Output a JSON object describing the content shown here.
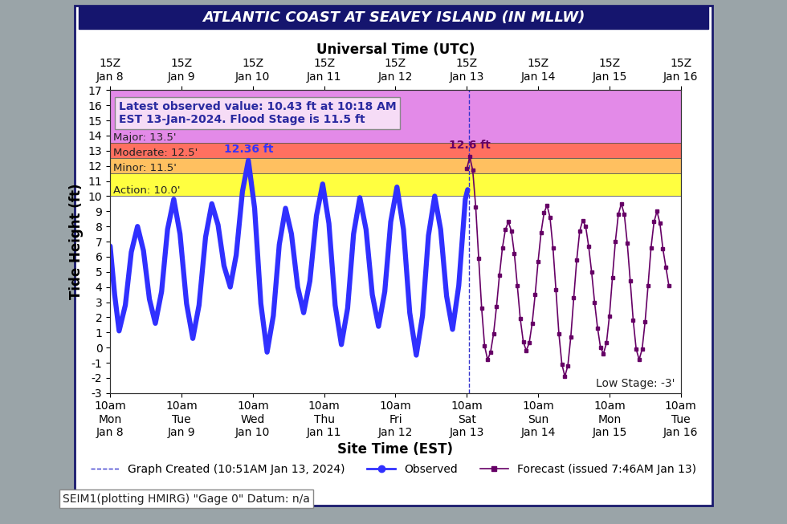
{
  "chart_data": {
    "type": "line",
    "title": "ATLANTIC COAST AT SEAVEY ISLAND (IN MLLW)",
    "x_label": "Site Time (EST)",
    "x2_label": "Universal Time (UTC)",
    "y_label": "Tide Height (ft)",
    "xlim": [
      0,
      192
    ],
    "xticks": [
      {
        "value": 0,
        "label": "10am\nMon\nJan 8"
      },
      {
        "value": 24,
        "label": "10am\nTue\nJan 9"
      },
      {
        "value": 48,
        "label": "10am\nWed\nJan 10"
      },
      {
        "value": 72,
        "label": "10am\nThu\nJan 11"
      },
      {
        "value": 96,
        "label": "10am\nFri\nJan 12"
      },
      {
        "value": 120,
        "label": "10am\nSat\nJan 13"
      },
      {
        "value": 144,
        "label": "10am\nSun\nJan 14"
      },
      {
        "value": 168,
        "label": "10am\nMon\nJan 15"
      },
      {
        "value": 192,
        "label": "10am\nTue\nJan 16"
      }
    ],
    "x2ticks": [
      {
        "value": 0,
        "label": "15Z\nJan 8"
      },
      {
        "value": 24,
        "label": "15Z\nJan 9"
      },
      {
        "value": 48,
        "label": "15Z\nJan 10"
      },
      {
        "value": 72,
        "label": "15Z\nJan 11"
      },
      {
        "value": 96,
        "label": "15Z\nJan 12"
      },
      {
        "value": 120,
        "label": "15Z\nJan 13"
      },
      {
        "value": 144,
        "label": "15Z\nJan 14"
      },
      {
        "value": 168,
        "label": "15Z\nJan 15"
      },
      {
        "value": 192,
        "label": "15Z\nJan 16"
      }
    ],
    "ylim": [
      -3,
      17
    ],
    "yticks": [
      -3,
      -2,
      -1,
      0,
      1,
      2,
      3,
      4,
      5,
      6,
      7,
      8,
      9,
      10,
      11,
      12,
      13,
      14,
      15,
      16,
      17
    ],
    "grid": false,
    "legend": "lower center",
    "stages": [
      {
        "label": "Action: 10.0'",
        "lower": 10.0,
        "upper": 11.5,
        "color": "#ffff40"
      },
      {
        "label": "Minor: 11.5'",
        "lower": 11.5,
        "upper": 12.5,
        "color": "#ffc060"
      },
      {
        "label": "Moderate: 12.5'",
        "lower": 12.5,
        "upper": 13.5,
        "color": "#ff7060"
      },
      {
        "label": "Major: 13.5'",
        "lower": 13.5,
        "upper": 17,
        "color": "#e38ae8"
      }
    ],
    "info_box": "Latest observed value: 10.43 ft at 10:18 AM\nEST 13-Jan-2024. Flood Stage is 11.5 ft",
    "low_stage_label": "Low Stage: -3'",
    "footer": "SEIM1(plotting HMIRG) \"Gage 0\" Datum: n/a",
    "graph_created": {
      "label": "Graph Created (10:51AM Jan 13, 2024)",
      "x": 120.85,
      "color": "#3333cc",
      "line_style": "dashed"
    },
    "annotations": [
      {
        "text": "12.36 ft",
        "x": 46.5,
        "y": 12.36,
        "color": "#3333ff"
      },
      {
        "text": "12.6 ft",
        "x": 121,
        "y": 12.6,
        "color": "#660066"
      }
    ],
    "series": [
      {
        "name": "Observed",
        "color": "#3030ff",
        "line_style": "solid",
        "marker": "none",
        "x": [
          0,
          1.5,
          3,
          5.1,
          7.1,
          9.2,
          11.2,
          13.2,
          15.2,
          17.3,
          19.3,
          21.4,
          23.5,
          25.7,
          27.8,
          29.9,
          32.1,
          34.2,
          36.3,
          38.3,
          40.4,
          42.4,
          44.5,
          46.5,
          48.6,
          50.7,
          52.8,
          54.9,
          56.9,
          59.0,
          61.0,
          63.1,
          65.1,
          67.2,
          69.4,
          71.5,
          73.6,
          75.7,
          77.8,
          79.9,
          81.9,
          84.0,
          86.1,
          88.2,
          90.3,
          92.4,
          94.4,
          96.5,
          98.7,
          100.8,
          103.0,
          105.1,
          107.1,
          109.2,
          111.2,
          113.2,
          115.2,
          117.3,
          119.5,
          120.3
        ],
        "values": [
          6.7,
          3.5,
          1.1,
          2.8,
          6.3,
          8.0,
          6.4,
          3.2,
          1.6,
          3.7,
          7.8,
          9.8,
          7.5,
          2.9,
          0.6,
          2.8,
          7.3,
          9.5,
          8.1,
          5.4,
          4.0,
          6.1,
          10.3,
          12.36,
          9.2,
          2.9,
          -0.3,
          2.1,
          6.8,
          9.2,
          7.5,
          4.0,
          2.3,
          4.4,
          8.7,
          10.8,
          8.2,
          2.8,
          0.2,
          2.6,
          7.5,
          9.9,
          7.8,
          3.5,
          1.4,
          3.7,
          8.3,
          10.6,
          7.8,
          2.3,
          -0.5,
          2.1,
          7.4,
          10.0,
          7.8,
          3.4,
          1.2,
          4.1,
          9.8,
          10.43
        ]
      },
      {
        "name": "Forecast (issued 7:46AM Jan 13)",
        "color": "#660066",
        "line_style": "solid",
        "marker": "square",
        "x": [
          120,
          121,
          122,
          123,
          124,
          125,
          126,
          127,
          128,
          129,
          130,
          131,
          132,
          133,
          134,
          135,
          136,
          137,
          138,
          139,
          140,
          141,
          142,
          143,
          144,
          145,
          146,
          147,
          148,
          149,
          150,
          151,
          152,
          153,
          154,
          155,
          156,
          157,
          158,
          159,
          160,
          161,
          162,
          163,
          164,
          165,
          166,
          167,
          168,
          169,
          170,
          171,
          172,
          173,
          174,
          175,
          176,
          177,
          178,
          179,
          180,
          181,
          182,
          183,
          184,
          185,
          186,
          187,
          188
        ],
        "values": [
          11.8,
          12.6,
          11.7,
          9.3,
          5.9,
          2.6,
          0.1,
          -0.8,
          -0.3,
          0.9,
          2.7,
          4.8,
          6.6,
          7.8,
          8.3,
          7.7,
          6.2,
          4.1,
          1.9,
          0.4,
          -0.2,
          0.3,
          1.6,
          3.5,
          5.7,
          7.6,
          8.9,
          9.4,
          8.6,
          6.6,
          3.8,
          0.9,
          -1.1,
          -1.9,
          -1.2,
          0.7,
          3.3,
          5.8,
          7.7,
          8.4,
          8.0,
          6.7,
          5.0,
          3.0,
          1.3,
          0.0,
          -0.4,
          0.3,
          2.1,
          4.6,
          7.0,
          8.8,
          9.5,
          8.8,
          6.9,
          4.4,
          1.8,
          -0.1,
          -0.8,
          -0.1,
          1.7,
          4.1,
          6.6,
          8.3,
          9.0,
          8.2,
          6.5,
          5.3,
          4.1
        ]
      }
    ]
  }
}
